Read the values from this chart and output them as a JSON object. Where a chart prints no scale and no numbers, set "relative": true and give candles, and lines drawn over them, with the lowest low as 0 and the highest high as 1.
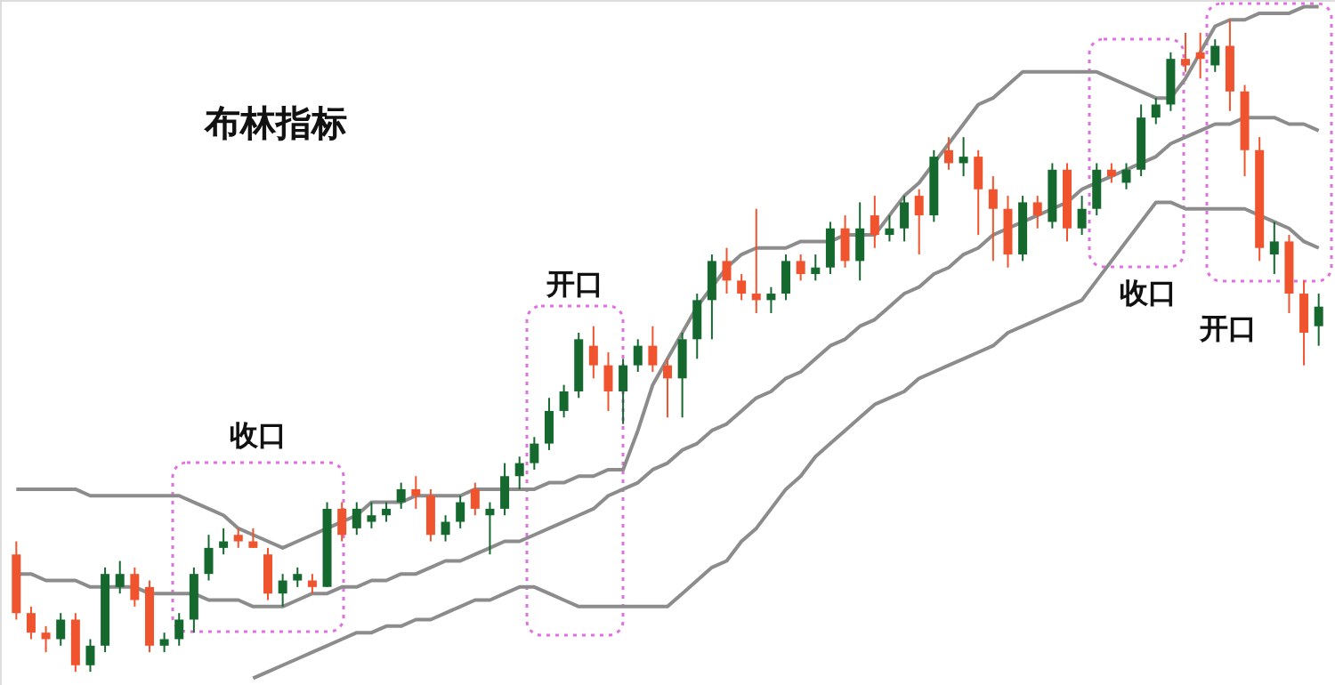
{
  "chart_data": {
    "type": "candlestick",
    "title": "布林指标",
    "relative": true,
    "categories": [
      null,
      null,
      null,
      null,
      null,
      null,
      null,
      null,
      null,
      null,
      null,
      null,
      null,
      null,
      null,
      null,
      null,
      null,
      null,
      null,
      null,
      null,
      null,
      null,
      null,
      null,
      null,
      null,
      null,
      null,
      null,
      null,
      null,
      null,
      null,
      null,
      null,
      null,
      null,
      null,
      null,
      null,
      null,
      null,
      null,
      null,
      null,
      null,
      null,
      null,
      null,
      null,
      null,
      null,
      null,
      null,
      null,
      null,
      null,
      null,
      null,
      null,
      null,
      null,
      null,
      null,
      null,
      null,
      null,
      null,
      null,
      null,
      null,
      null,
      null,
      null,
      null,
      null,
      null,
      null,
      null,
      null,
      null,
      null,
      null,
      null,
      null,
      null,
      null
    ],
    "ohlc": [
      [
        0.18,
        0.2,
        0.08,
        0.09
      ],
      [
        0.09,
        0.1,
        0.05,
        0.06
      ],
      [
        0.06,
        0.07,
        0.03,
        0.05
      ],
      [
        0.05,
        0.09,
        0.04,
        0.08
      ],
      [
        0.08,
        0.09,
        0.0,
        0.01
      ],
      [
        0.01,
        0.05,
        0.0,
        0.04
      ],
      [
        0.04,
        0.16,
        0.03,
        0.15
      ],
      [
        0.13,
        0.17,
        0.12,
        0.15
      ],
      [
        0.15,
        0.16,
        0.1,
        0.11
      ],
      [
        0.13,
        0.14,
        0.03,
        0.04
      ],
      [
        0.04,
        0.06,
        0.03,
        0.05
      ],
      [
        0.05,
        0.09,
        0.04,
        0.08
      ],
      [
        0.08,
        0.16,
        0.06,
        0.15
      ],
      [
        0.15,
        0.21,
        0.14,
        0.19
      ],
      [
        0.19,
        0.22,
        0.18,
        0.2
      ],
      [
        0.21,
        0.22,
        0.19,
        0.2
      ],
      [
        0.2,
        0.22,
        0.19,
        0.19
      ],
      [
        0.18,
        0.19,
        0.11,
        0.12
      ],
      [
        0.12,
        0.15,
        0.1,
        0.14
      ],
      [
        0.14,
        0.16,
        0.13,
        0.15
      ],
      [
        0.14,
        0.15,
        0.12,
        0.13
      ],
      [
        0.13,
        0.26,
        0.13,
        0.25
      ],
      [
        0.25,
        0.26,
        0.2,
        0.21
      ],
      [
        0.22,
        0.26,
        0.21,
        0.25
      ],
      [
        0.23,
        0.26,
        0.22,
        0.24
      ],
      [
        0.24,
        0.26,
        0.23,
        0.25
      ],
      [
        0.26,
        0.29,
        0.25,
        0.28
      ],
      [
        0.28,
        0.3,
        0.25,
        0.27
      ],
      [
        0.27,
        0.28,
        0.2,
        0.21
      ],
      [
        0.21,
        0.24,
        0.2,
        0.23
      ],
      [
        0.23,
        0.27,
        0.22,
        0.26
      ],
      [
        0.28,
        0.29,
        0.24,
        0.25
      ],
      [
        0.24,
        0.26,
        0.18,
        0.25
      ],
      [
        0.25,
        0.32,
        0.24,
        0.3
      ],
      [
        0.3,
        0.33,
        0.28,
        0.32
      ],
      [
        0.32,
        0.36,
        0.31,
        0.35
      ],
      [
        0.35,
        0.42,
        0.34,
        0.4
      ],
      [
        0.4,
        0.44,
        0.39,
        0.43
      ],
      [
        0.43,
        0.52,
        0.42,
        0.51
      ],
      [
        0.5,
        0.53,
        0.45,
        0.47
      ],
      [
        0.47,
        0.49,
        0.4,
        0.43
      ],
      [
        0.43,
        0.48,
        0.38,
        0.47
      ],
      [
        0.47,
        0.51,
        0.46,
        0.5
      ],
      [
        0.5,
        0.53,
        0.46,
        0.47
      ],
      [
        0.47,
        0.48,
        0.39,
        0.45
      ],
      [
        0.45,
        0.52,
        0.39,
        0.51
      ],
      [
        0.51,
        0.58,
        0.48,
        0.57
      ],
      [
        0.57,
        0.64,
        0.51,
        0.63
      ],
      [
        0.63,
        0.65,
        0.58,
        0.6
      ],
      [
        0.6,
        0.61,
        0.57,
        0.58
      ],
      [
        0.58,
        0.71,
        0.55,
        0.57
      ],
      [
        0.57,
        0.59,
        0.55,
        0.58
      ],
      [
        0.58,
        0.64,
        0.57,
        0.63
      ],
      [
        0.63,
        0.64,
        0.6,
        0.61
      ],
      [
        0.61,
        0.64,
        0.6,
        0.62
      ],
      [
        0.62,
        0.69,
        0.61,
        0.68
      ],
      [
        0.68,
        0.7,
        0.62,
        0.63
      ],
      [
        0.63,
        0.72,
        0.6,
        0.68
      ],
      [
        0.7,
        0.73,
        0.65,
        0.67
      ],
      [
        0.67,
        0.7,
        0.66,
        0.68
      ],
      [
        0.68,
        0.73,
        0.66,
        0.72
      ],
      [
        0.73,
        0.74,
        0.64,
        0.7
      ],
      [
        0.7,
        0.8,
        0.69,
        0.79
      ],
      [
        0.8,
        0.82,
        0.77,
        0.78
      ],
      [
        0.78,
        0.82,
        0.76,
        0.79
      ],
      [
        0.79,
        0.8,
        0.67,
        0.74
      ],
      [
        0.74,
        0.76,
        0.63,
        0.71
      ],
      [
        0.71,
        0.73,
        0.62,
        0.64
      ],
      [
        0.64,
        0.73,
        0.63,
        0.72
      ],
      [
        0.72,
        0.73,
        0.68,
        0.7
      ],
      [
        0.69,
        0.78,
        0.68,
        0.77
      ],
      [
        0.77,
        0.78,
        0.66,
        0.68
      ],
      [
        0.68,
        0.73,
        0.67,
        0.71
      ],
      [
        0.71,
        0.78,
        0.7,
        0.77
      ],
      [
        0.77,
        0.78,
        0.75,
        0.76
      ],
      [
        0.75,
        0.78,
        0.74,
        0.77
      ],
      [
        0.77,
        0.87,
        0.76,
        0.85
      ],
      [
        0.85,
        0.88,
        0.84,
        0.87
      ],
      [
        0.87,
        0.95,
        0.86,
        0.94
      ],
      [
        0.94,
        0.98,
        0.92,
        0.93
      ],
      [
        0.95,
        0.98,
        0.91,
        0.94
      ],
      [
        0.93,
        0.97,
        0.92,
        0.96
      ],
      [
        0.96,
        1.0,
        0.86,
        0.89
      ],
      [
        0.89,
        0.9,
        0.76,
        0.8
      ],
      [
        0.8,
        0.82,
        0.63,
        0.65
      ],
      [
        0.64,
        0.69,
        0.61,
        0.66
      ],
      [
        0.66,
        0.67,
        0.55,
        0.58
      ],
      [
        0.58,
        0.6,
        0.47,
        0.52
      ],
      [
        0.53,
        0.58,
        0.5,
        0.56
      ]
    ],
    "colors": [
      "#f0542e",
      "#f0542e",
      "#f0542e",
      "#15692f",
      "#f0542e",
      "#15692f",
      "#15692f",
      "#15692f",
      "#f0542e",
      "#f0542e",
      "#15692f",
      "#15692f",
      "#15692f",
      "#15692f",
      "#15692f",
      "#f0542e",
      "#f0542e",
      "#f0542e",
      "#15692f",
      "#15692f",
      "#f0542e",
      "#15692f",
      "#f0542e",
      "#15692f",
      "#15692f",
      "#15692f",
      "#15692f",
      "#f0542e",
      "#f0542e",
      "#15692f",
      "#15692f",
      "#f0542e",
      "#15692f",
      "#15692f",
      "#15692f",
      "#15692f",
      "#15692f",
      "#15692f",
      "#15692f",
      "#f0542e",
      "#f0542e",
      "#15692f",
      "#15692f",
      "#f0542e",
      "#f0542e",
      "#15692f",
      "#15692f",
      "#15692f",
      "#f0542e",
      "#f0542e",
      "#f0542e",
      "#15692f",
      "#15692f",
      "#f0542e",
      "#15692f",
      "#15692f",
      "#f0542e",
      "#15692f",
      "#f0542e",
      "#15692f",
      "#15692f",
      "#f0542e",
      "#15692f",
      "#f0542e",
      "#15692f",
      "#f0542e",
      "#f0542e",
      "#f0542e",
      "#15692f",
      "#f0542e",
      "#15692f",
      "#f0542e",
      "#15692f",
      "#15692f",
      "#f0542e",
      "#15692f",
      "#15692f",
      "#15692f",
      "#15692f",
      "#f0542e",
      "#f0542e",
      "#15692f",
      "#f0542e",
      "#f0542e",
      "#f0542e",
      "#15692f",
      "#f0542e",
      "#f0542e",
      "#15692f"
    ],
    "series": [
      {
        "type": "line",
        "color": "#8c8c8c",
        "values": [
          0.28,
          0.28,
          0.28,
          0.28,
          0.28,
          0.27,
          0.27,
          0.27,
          0.27,
          0.27,
          0.27,
          0.27,
          0.26,
          0.25,
          0.24,
          0.22,
          0.21,
          0.2,
          0.19,
          0.2,
          0.21,
          0.22,
          0.23,
          0.24,
          0.26,
          0.26,
          0.26,
          0.27,
          0.27,
          0.27,
          0.27,
          0.28,
          0.28,
          0.28,
          0.28,
          0.28,
          0.29,
          0.29,
          0.3,
          0.3,
          0.31,
          0.31,
          0.37,
          0.44,
          0.48,
          0.52,
          0.56,
          0.59,
          0.62,
          0.64,
          0.65,
          0.65,
          0.65,
          0.66,
          0.66,
          0.66,
          0.67,
          0.67,
          0.67,
          0.7,
          0.73,
          0.75,
          0.78,
          0.81,
          0.84,
          0.87,
          0.88,
          0.9,
          0.92,
          0.92,
          0.92,
          0.92,
          0.92,
          0.92,
          0.91,
          0.9,
          0.89,
          0.88,
          0.88,
          0.91,
          0.95,
          0.99,
          1.0,
          1.0,
          1.01,
          1.01,
          1.01,
          1.02,
          1.02
        ]
      },
      {
        "type": "line",
        "color": "#8c8c8c",
        "values": [
          0.15,
          0.15,
          0.14,
          0.14,
          0.14,
          0.13,
          0.13,
          0.13,
          0.13,
          0.12,
          0.12,
          0.12,
          0.12,
          0.11,
          0.11,
          0.11,
          0.1,
          0.1,
          0.1,
          0.11,
          0.12,
          0.12,
          0.13,
          0.13,
          0.14,
          0.14,
          0.15,
          0.15,
          0.16,
          0.17,
          0.17,
          0.18,
          0.19,
          0.2,
          0.2,
          0.21,
          0.22,
          0.23,
          0.24,
          0.25,
          0.27,
          0.28,
          0.29,
          0.31,
          0.32,
          0.34,
          0.35,
          0.37,
          0.38,
          0.4,
          0.42,
          0.43,
          0.45,
          0.46,
          0.48,
          0.5,
          0.51,
          0.53,
          0.54,
          0.56,
          0.58,
          0.59,
          0.61,
          0.62,
          0.64,
          0.65,
          0.67,
          0.68,
          0.69,
          0.7,
          0.71,
          0.72,
          0.74,
          0.75,
          0.76,
          0.77,
          0.78,
          0.79,
          0.81,
          0.82,
          0.83,
          0.84,
          0.84,
          0.85,
          0.85,
          0.85,
          0.84,
          0.84,
          0.83
        ]
      },
      {
        "type": "line",
        "color": "#8c8c8c",
        "values": [
          null,
          null,
          null,
          null,
          null,
          null,
          null,
          null,
          null,
          null,
          null,
          null,
          null,
          null,
          null,
          null,
          -0.01,
          0.0,
          0.01,
          0.02,
          0.03,
          0.04,
          0.05,
          0.06,
          0.06,
          0.07,
          0.07,
          0.08,
          0.08,
          0.09,
          0.1,
          0.11,
          0.11,
          0.12,
          0.13,
          0.13,
          0.12,
          0.11,
          0.1,
          0.1,
          0.1,
          0.1,
          0.1,
          0.1,
          0.1,
          0.12,
          0.14,
          0.16,
          0.17,
          0.2,
          0.22,
          0.25,
          0.28,
          0.3,
          0.33,
          0.35,
          0.37,
          0.39,
          0.41,
          0.42,
          0.43,
          0.45,
          0.46,
          0.47,
          0.48,
          0.49,
          0.5,
          0.52,
          0.53,
          0.54,
          0.55,
          0.56,
          0.57,
          0.6,
          0.63,
          0.66,
          0.69,
          0.72,
          0.72,
          0.71,
          0.71,
          0.71,
          0.71,
          0.71,
          0.7,
          0.69,
          0.68,
          0.66,
          0.65
        ]
      }
    ],
    "annotations": [
      "收口",
      "开口",
      "收口",
      "开口"
    ]
  }
}
